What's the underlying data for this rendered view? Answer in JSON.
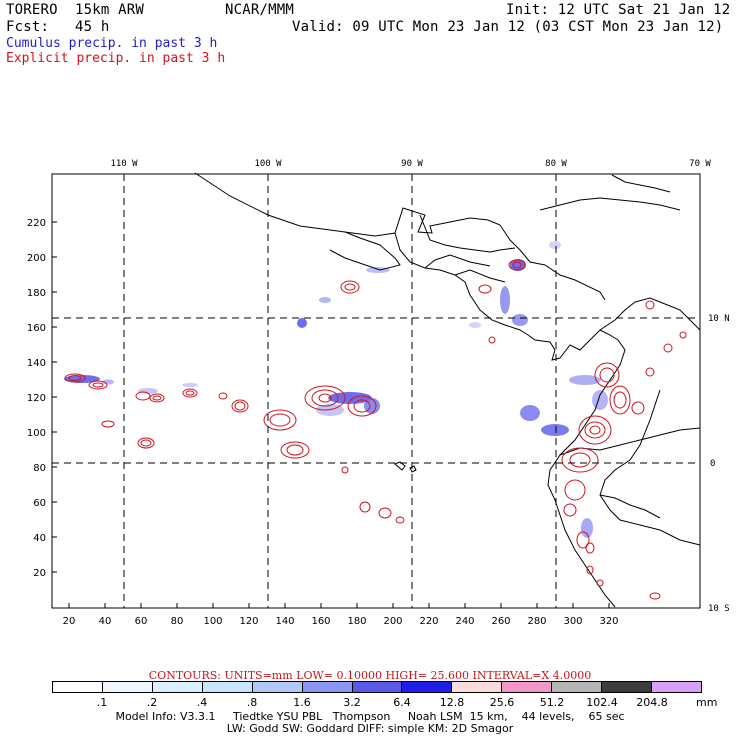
{
  "header": {
    "model": "TORERO  15km ARW",
    "center": "NCAR/MMM",
    "init": "Init: 12 UTC Sat 21 Jan 12",
    "fcst": "Fcst:   45 h",
    "valid": "Valid: 09 UTC Mon 23 Jan 12 (03 CST Mon 23 Jan 12)"
  },
  "legend": {
    "cumulus": "Cumulus precip. in past 3 h",
    "explicit": "Explicit precip. in past 3 h",
    "cumulus_color": "#1f1fc8",
    "explicit_color": "#d0141e"
  },
  "map": {
    "lon_labels": [
      "110 W",
      "100 W",
      "90 W",
      "80 W",
      "70 W"
    ],
    "lat_labels": [
      "10 N",
      "0",
      "10 S"
    ],
    "x_ticks": [
      "20",
      "40",
      "60",
      "80",
      "100",
      "120",
      "140",
      "160",
      "180",
      "200",
      "220",
      "240",
      "260",
      "280",
      "300",
      "320"
    ],
    "y_ticks": [
      "20",
      "40",
      "60",
      "80",
      "100",
      "120",
      "140",
      "160",
      "180",
      "200",
      "220"
    ],
    "coast_color": "#000000",
    "grid_color": "#000000"
  },
  "contours": {
    "title": "CONTOURS:  UNITS=mm  LOW= 0.10000     HIGH=  25.600      INTERVAL=X  4.0000"
  },
  "colorbar": {
    "colors": [
      "#ffffff",
      "#f0f6ff",
      "#dcefff",
      "#c8e6ff",
      "#afc8f5",
      "#8c96f0",
      "#5a5ae6",
      "#1e1ee6",
      "#fadcdc",
      "#f596c8",
      "#b4b4b4",
      "#3c3c3c",
      "#d7a0f5"
    ],
    "labels": [
      ".1",
      ".2",
      ".4",
      ".8",
      "1.6",
      "3.2",
      "6.4",
      "12.8",
      "25.6",
      "51.2",
      "102.4",
      "204.8"
    ],
    "unit": "mm"
  },
  "footer": {
    "line1": "Model Info: V3.3.1     Tiedtke YSU PBL   Thompson     Noah LSM  15 km,    44 levels,    65 sec",
    "line2": "LW: Godd SW: Goddard DIFF: simple KM: 2D Smagor"
  }
}
